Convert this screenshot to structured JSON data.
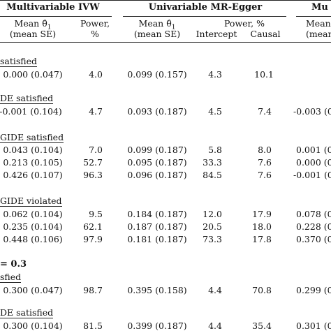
{
  "headers": {
    "group1": "Multivariable IVW",
    "group2": "Univariable MR-Egger",
    "group3": "Mu",
    "mean_theta": "Mean θ̂",
    "mean_theta_sub": "1",
    "mean_se": "(mean SE)",
    "power_pct": "Power,",
    "pct": "%",
    "power_pct_inline": "Power, %",
    "intercept": "Intercept",
    "causal": "Causal",
    "mean_cut": "Mean"
  },
  "sections": [
    {
      "label": "satisfied"
    },
    {
      "label": "DE satisfied"
    },
    {
      "label": "GIDE satisfied"
    },
    {
      "label": "GIDE violated"
    },
    {
      "label": "= 0.3"
    },
    {
      "label": "sfied"
    },
    {
      "label": "DE satisfied"
    }
  ],
  "rows": [
    {
      "ivw": "0.000 (0.047)",
      "ivw_power": "4.0",
      "eg": "0.099 (0.157)",
      "int": "4.3",
      "causal": "10.1",
      "mu": ""
    },
    {
      "ivw": "-0.001 (0.104)",
      "ivw_power": "4.7",
      "eg": "0.093 (0.187)",
      "int": "4.5",
      "causal": "7.4",
      "mu": "-0.003 (0"
    },
    {
      "ivw": "0.043 (0.104)",
      "ivw_power": "7.0",
      "eg": "0.099 (0.187)",
      "int": "5.8",
      "causal": "8.0",
      "mu": "0.001 (0"
    },
    {
      "ivw": "0.213 (0.105)",
      "ivw_power": "52.7",
      "eg": "0.095 (0.187)",
      "int": "33.3",
      "causal": "7.6",
      "mu": "0.000 (0"
    },
    {
      "ivw": "0.426 (0.107)",
      "ivw_power": "96.3",
      "eg": "0.096 (0.187)",
      "int": "84.5",
      "causal": "7.6",
      "mu": "-0.001 (0"
    },
    {
      "ivw": "0.062 (0.104)",
      "ivw_power": "9.5",
      "eg": "0.184 (0.187)",
      "int": "12.0",
      "causal": "17.9",
      "mu": "0.078 (0"
    },
    {
      "ivw": "0.235 (0.104)",
      "ivw_power": "62.1",
      "eg": "0.187 (0.187)",
      "int": "20.5",
      "causal": "18.0",
      "mu": "0.228 (0"
    },
    {
      "ivw": "0.448 (0.106)",
      "ivw_power": "97.9",
      "eg": "0.181 (0.187)",
      "int": "73.3",
      "causal": "17.8",
      "mu": "0.370 (0"
    },
    {
      "ivw": "0.300 (0.047)",
      "ivw_power": "98.7",
      "eg": "0.395 (0.158)",
      "int": "4.4",
      "causal": "70.8",
      "mu": "0.299 (0"
    },
    {
      "ivw": "0.300 (0.104)",
      "ivw_power": "81.5",
      "eg": "0.399 (0.187)",
      "int": "4.4",
      "causal": "35.4",
      "mu": "0.301 (0"
    }
  ]
}
